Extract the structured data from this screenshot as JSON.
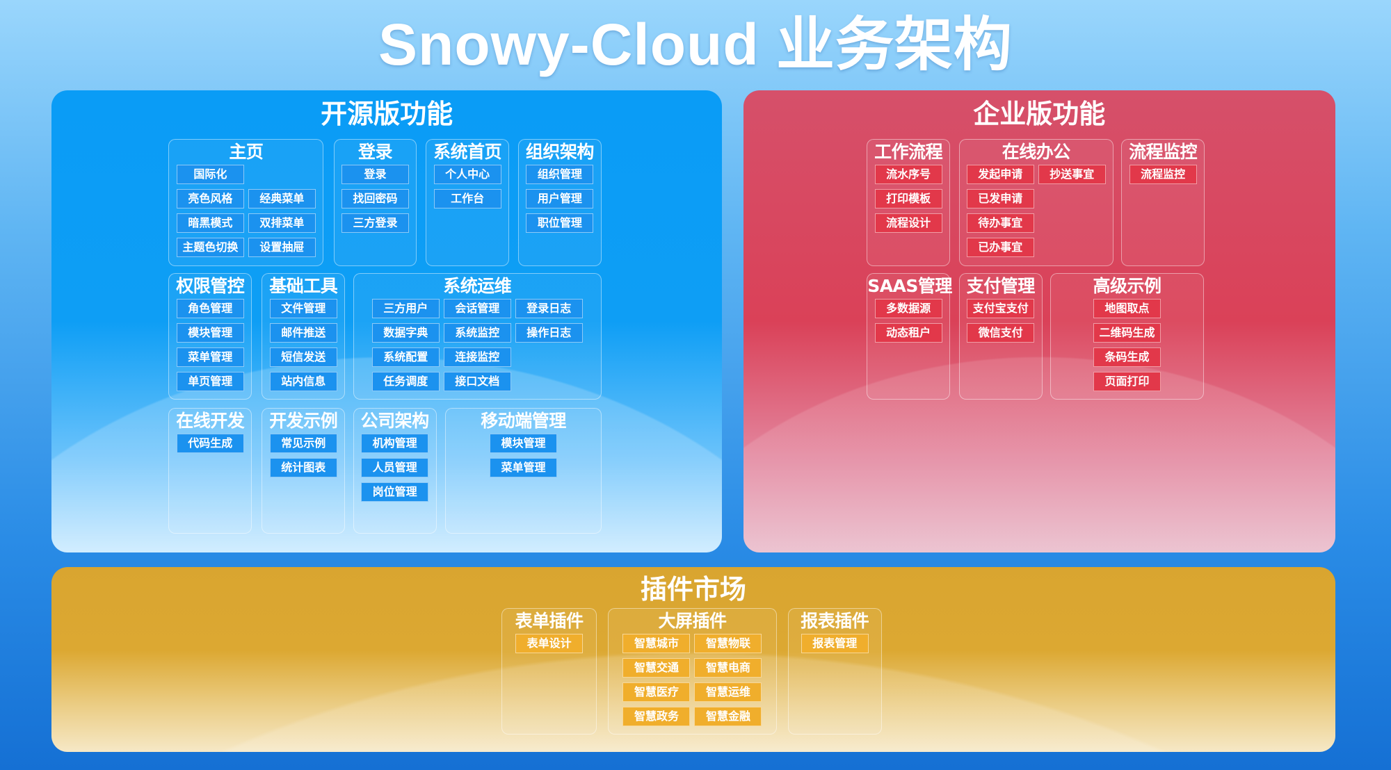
{
  "title": "Snowy-Cloud 业务架构",
  "colors": {
    "open_source": "#0a9cf5",
    "enterprise": "#d84a62",
    "plugins": "#dba631"
  },
  "panels": [
    {
      "key": "open",
      "title": "开源版功能",
      "groups": [
        {
          "title": "主页",
          "rows": [
            [
              "国际化"
            ],
            [
              "亮色风格",
              "经典菜单"
            ],
            [
              "暗黑模式",
              "双排菜单"
            ],
            [
              "主题色切换",
              "设置抽屉"
            ]
          ]
        },
        {
          "title": "登录",
          "rows": [
            [
              "登录"
            ],
            [
              "找回密码"
            ],
            [
              "三方登录"
            ]
          ]
        },
        {
          "title": "系统首页",
          "rows": [
            [
              "个人中心"
            ],
            [
              "工作台"
            ]
          ]
        },
        {
          "title": "组织架构",
          "rows": [
            [
              "组织管理"
            ],
            [
              "用户管理"
            ],
            [
              "职位管理"
            ]
          ]
        },
        {
          "title": "权限管控",
          "rows": [
            [
              "角色管理"
            ],
            [
              "模块管理"
            ],
            [
              "菜单管理"
            ],
            [
              "单页管理"
            ]
          ]
        },
        {
          "title": "基础工具",
          "rows": [
            [
              "文件管理"
            ],
            [
              "邮件推送"
            ],
            [
              "短信发送"
            ],
            [
              "站内信息"
            ]
          ]
        },
        {
          "title": "系统运维",
          "rows": [
            [
              "三方用户",
              "会话管理",
              "登录日志"
            ],
            [
              "数据字典",
              "系统监控",
              "操作日志"
            ],
            [
              "系统配置",
              "连接监控"
            ],
            [
              "任务调度",
              "接口文档"
            ]
          ]
        },
        {
          "title": "在线开发",
          "rows": [
            [
              "代码生成"
            ]
          ]
        },
        {
          "title": "开发示例",
          "rows": [
            [
              "常见示例"
            ],
            [
              "统计图表"
            ]
          ]
        },
        {
          "title": "公司架构",
          "rows": [
            [
              "机构管理"
            ],
            [
              "人员管理"
            ],
            [
              "岗位管理"
            ]
          ]
        },
        {
          "title": "移动端管理",
          "rows": [
            [
              "模块管理"
            ],
            [
              "菜单管理"
            ]
          ]
        }
      ]
    },
    {
      "key": "enterprise",
      "title": "企业版功能",
      "groups": [
        {
          "title": "工作流程",
          "rows": [
            [
              "流水序号"
            ],
            [
              "打印模板"
            ],
            [
              "流程设计"
            ]
          ]
        },
        {
          "title": "在线办公",
          "rows": [
            [
              "发起申请",
              "抄送事宜"
            ],
            [
              "已发申请"
            ],
            [
              "待办事宜"
            ],
            [
              "已办事宜"
            ]
          ]
        },
        {
          "title": "流程监控",
          "rows": [
            [
              "流程监控"
            ]
          ]
        },
        {
          "title": "SAAS管理",
          "rows": [
            [
              "多数据源"
            ],
            [
              "动态租户"
            ]
          ]
        },
        {
          "title": "支付管理",
          "rows": [
            [
              "支付宝支付"
            ],
            [
              "微信支付"
            ]
          ]
        },
        {
          "title": "高级示例",
          "rows": [
            [
              "地图取点"
            ],
            [
              "二维码生成"
            ],
            [
              "条码生成"
            ],
            [
              "页面打印"
            ]
          ]
        }
      ]
    },
    {
      "key": "plugins",
      "title": "插件市场",
      "groups": [
        {
          "title": "表单插件",
          "rows": [
            [
              "表单设计"
            ]
          ]
        },
        {
          "title": "大屏插件",
          "rows": [
            [
              "智慧城市",
              "智慧物联"
            ],
            [
              "智慧交通",
              "智慧电商"
            ],
            [
              "智慧医疗",
              "智慧运维"
            ],
            [
              "智慧政务",
              "智慧金融"
            ]
          ]
        },
        {
          "title": "报表插件",
          "rows": [
            [
              "报表管理"
            ]
          ]
        }
      ]
    }
  ]
}
